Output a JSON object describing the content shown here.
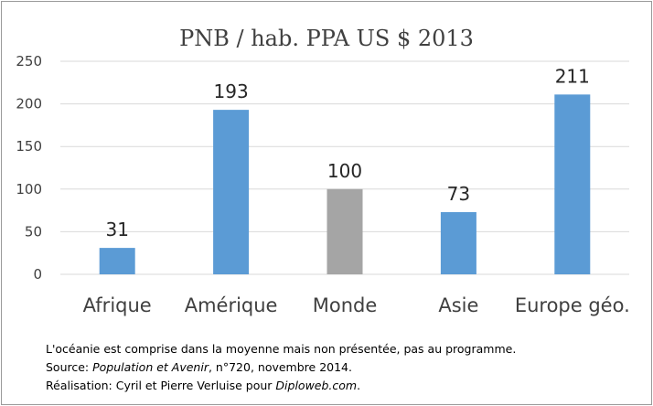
{
  "chart_data": {
    "type": "bar",
    "title": "PNB / hab. PPA US $ 2013",
    "categories": [
      "Afrique",
      "Amérique",
      "Monde",
      "Asie",
      "Europe géo."
    ],
    "values": [
      31,
      193,
      100,
      73,
      211
    ],
    "data_labels": [
      "31",
      "193",
      "100",
      "73",
      "211"
    ],
    "ylim": [
      0,
      250
    ],
    "yticks": [
      0,
      50,
      100,
      150,
      200,
      250
    ],
    "grid": true,
    "legend": "none",
    "bar_colors": [
      "#5b9bd5",
      "#5b9bd5",
      "#a5a5a5",
      "#5b9bd5",
      "#5b9bd5"
    ],
    "gridline_color": "#d9d9d9"
  },
  "notes": {
    "line1": "L'océanie est comprise dans la moyenne mais non présentée, pas au programme.",
    "line2_prefix": "Source: ",
    "line2_italic": "Population et Avenir",
    "line2_suffix": ", n°720, novembre 2014.",
    "line3_prefix": "Réalisation: Cyril et Pierre Verluise pour ",
    "line3_italic": "Diploweb.com",
    "line3_suffix": "."
  }
}
